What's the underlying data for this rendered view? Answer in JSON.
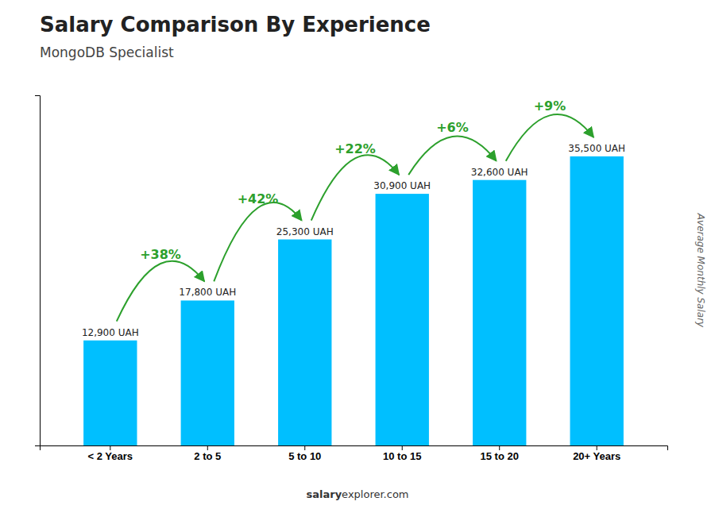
{
  "chart_data": {
    "type": "bar",
    "title": "Salary Comparison By Experience",
    "subtitle": "MongoDB Specialist",
    "categories": [
      "< 2 Years",
      "2 to 5",
      "5 to 10",
      "10 to 15",
      "15 to 20",
      "20+ Years"
    ],
    "values": [
      12900,
      17800,
      25300,
      30900,
      32600,
      35500
    ],
    "value_labels": [
      "12,900 UAH",
      "17,800 UAH",
      "25,300 UAH",
      "30,900 UAH",
      "32,600 UAH",
      "35,500 UAH"
    ],
    "data_labels": true,
    "color": "#00BFFF",
    "ylabel": "Average Monthly Salary",
    "ylim": [
      0,
      43000
    ],
    "tick_labels": "x",
    "annotations": [
      "+38%",
      "+42%",
      "+22%",
      "+6%",
      "+9%"
    ],
    "source": [
      "salary",
      "explorer.com"
    ]
  }
}
